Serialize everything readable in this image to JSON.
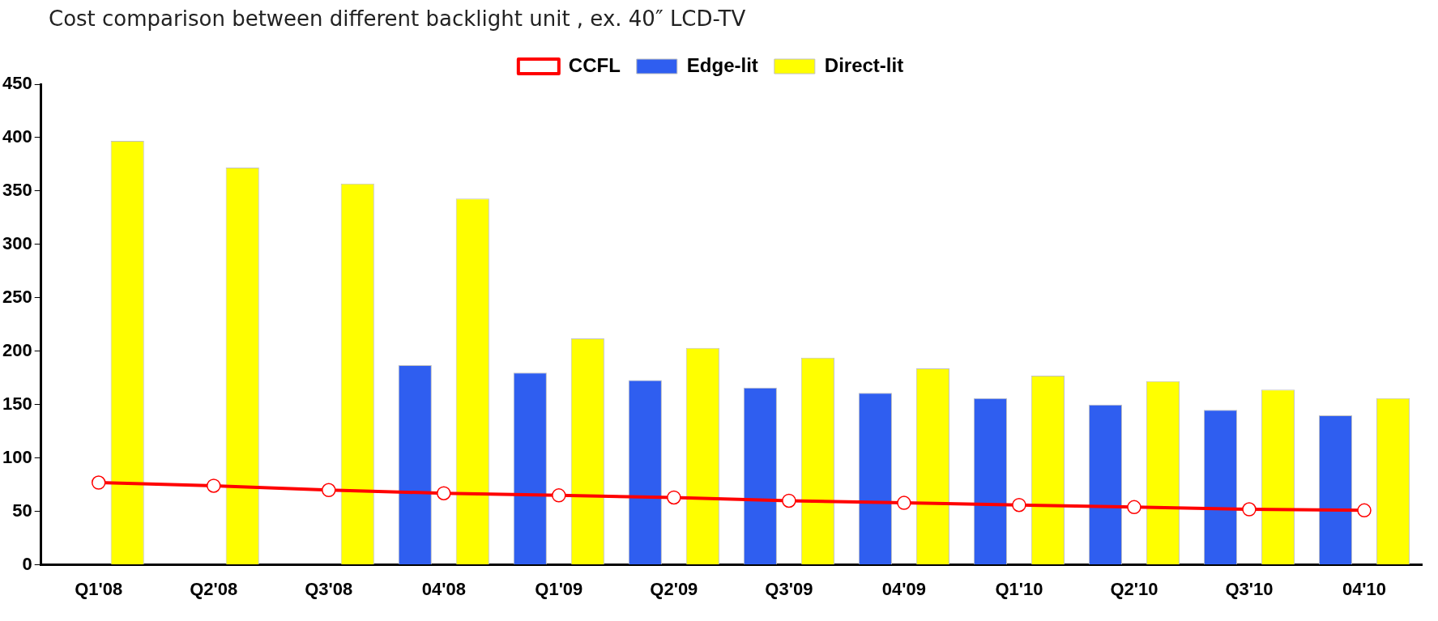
{
  "chart_data": {
    "type": "bar",
    "title": "Cost comparison between different backlight unit , ex. 40″ LCD-TV",
    "categories": [
      "Q1'08",
      "Q2'08",
      "Q3'08",
      "04'08",
      "Q1'09",
      "Q2'09",
      "Q3'09",
      "04'09",
      "Q1'10",
      "Q2'10",
      "Q3'10",
      "04'10"
    ],
    "series": [
      {
        "name": "Edge-lit",
        "color": "#2f5ef0",
        "values": [
          null,
          null,
          null,
          187,
          180,
          173,
          166,
          161,
          156,
          150,
          145,
          140
        ]
      },
      {
        "name": "Direct-lit",
        "color": "#ffff00",
        "values": [
          397,
          372,
          357,
          343,
          212,
          203,
          194,
          184,
          177,
          172,
          164,
          156
        ]
      },
      {
        "name": "CCFL",
        "type": "line",
        "color": "#ff0000",
        "marker": "circle",
        "values": [
          77,
          74,
          70,
          67,
          65,
          63,
          60,
          58,
          56,
          54,
          52,
          51
        ]
      }
    ],
    "ylim": [
      0,
      450
    ],
    "yticks": [
      0,
      50,
      100,
      150,
      200,
      250,
      300,
      350,
      400,
      450
    ],
    "grid": false,
    "legend": "top"
  }
}
